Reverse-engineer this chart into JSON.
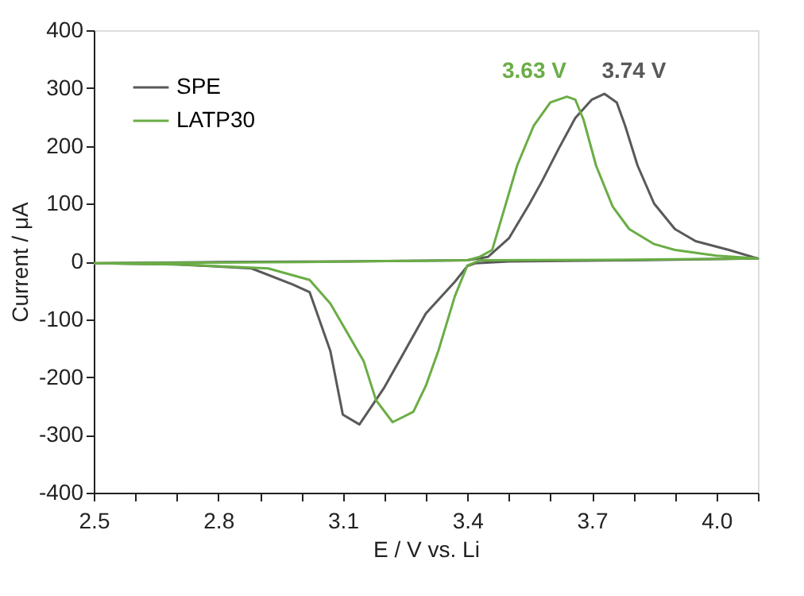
{
  "chart_data": {
    "type": "line",
    "xlabel": "E / V vs. Li",
    "ylabel": "Current / μA",
    "xlim": [
      2.5,
      4.1
    ],
    "ylim": [
      -400,
      400
    ],
    "xticks": [
      2.5,
      {
        "value": 2.6,
        "label": null
      },
      {
        "value": 2.7,
        "label": null
      },
      2.8,
      {
        "value": 2.9,
        "label": null
      },
      {
        "value": 3.0,
        "label": null
      },
      3.1,
      {
        "value": 3.2,
        "label": null
      },
      {
        "value": 3.3,
        "label": null
      },
      3.4,
      {
        "value": 3.5,
        "label": null
      },
      {
        "value": 3.6,
        "label": null
      },
      3.7,
      {
        "value": 3.8,
        "label": null
      },
      {
        "value": 3.9,
        "label": null
      },
      {
        "value": 4.0,
        "label": "4.0"
      },
      {
        "value": 4.1,
        "label": null
      }
    ],
    "yticks": [
      -400,
      -300,
      -200,
      -100,
      0,
      100,
      200,
      300,
      400
    ],
    "grid": false,
    "legend": "top left",
    "line_style": "solid",
    "marker": "none",
    "series": [
      {
        "name": "SPE",
        "color": "#595959",
        "x": [
          2.5,
          2.8,
          3.1,
          3.4,
          3.45,
          3.5,
          3.55,
          3.58,
          3.62,
          3.66,
          3.7,
          3.73,
          3.76,
          3.78,
          3.81,
          3.85,
          3.9,
          3.95,
          4.03,
          4.1,
          3.8,
          3.5,
          3.42,
          3.4,
          3.37,
          3.3,
          3.2,
          3.14,
          3.1,
          3.07,
          3.02,
          2.98,
          2.88,
          2.7,
          2.51
        ],
        "values": [
          -3,
          -1,
          0,
          2,
          8,
          40,
          100,
          139,
          195,
          248,
          280,
          290,
          275,
          235,
          166,
          100,
          56,
          35,
          20,
          5,
          2,
          0,
          -3,
          -8,
          -35,
          -90,
          -218,
          -282,
          -265,
          -155,
          -53,
          -40,
          -12,
          -5,
          -3
        ]
      },
      {
        "name": "LATP30",
        "color": "#6aad45",
        "x": [
          2.5,
          3.0,
          3.4,
          3.43,
          3.46,
          3.52,
          3.56,
          3.6,
          3.64,
          3.66,
          3.68,
          3.71,
          3.75,
          3.79,
          3.85,
          3.9,
          4.0,
          4.1,
          3.8,
          3.43,
          3.4,
          3.37,
          3.33,
          3.3,
          3.27,
          3.22,
          3.18,
          3.15,
          3.1,
          3.07,
          3.02,
          2.92,
          2.7,
          2.51
        ],
        "values": [
          -3,
          -1,
          2,
          8,
          20,
          166,
          235,
          275,
          285,
          280,
          245,
          166,
          95,
          56,
          30,
          20,
          10,
          5,
          3,
          2,
          -7,
          -60,
          -155,
          -215,
          -260,
          -278,
          -240,
          -172,
          -110,
          -73,
          -32,
          -12,
          -5,
          -3
        ]
      }
    ],
    "annotations": [
      {
        "text": "3.74 V",
        "x": 3.74,
        "y": 290
      },
      {
        "text": "3.63 V",
        "x": 3.63,
        "y": 285
      }
    ]
  }
}
